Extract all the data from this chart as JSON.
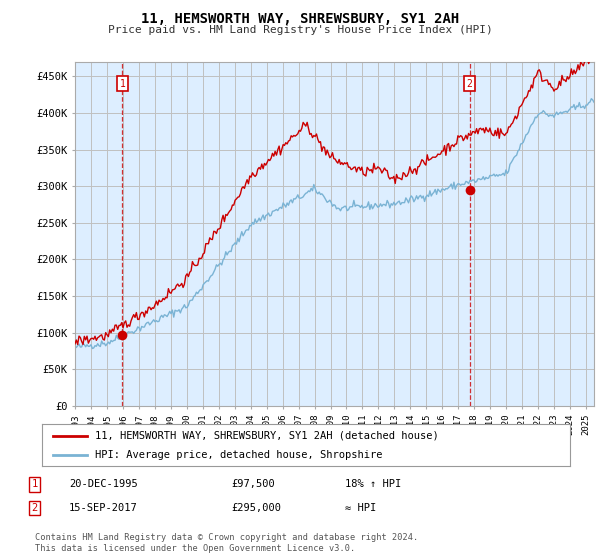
{
  "title": "11, HEMSWORTH WAY, SHREWSBURY, SY1 2AH",
  "subtitle": "Price paid vs. HM Land Registry's House Price Index (HPI)",
  "ylabel_ticks": [
    "£0",
    "£50K",
    "£100K",
    "£150K",
    "£200K",
    "£250K",
    "£300K",
    "£350K",
    "£400K",
    "£450K"
  ],
  "ytick_values": [
    0,
    50000,
    100000,
    150000,
    200000,
    250000,
    300000,
    350000,
    400000,
    450000
  ],
  "ylim": [
    0,
    470000
  ],
  "xlim_start": 1993.0,
  "xlim_end": 2025.5,
  "xtick_years": [
    1993,
    1994,
    1995,
    1996,
    1997,
    1998,
    1999,
    2000,
    2001,
    2002,
    2003,
    2004,
    2005,
    2006,
    2007,
    2008,
    2009,
    2010,
    2011,
    2012,
    2013,
    2014,
    2015,
    2016,
    2017,
    2018,
    2019,
    2020,
    2021,
    2022,
    2023,
    2024,
    2025
  ],
  "sale1": {
    "year": 1995.97,
    "price": 97500,
    "label": "1"
  },
  "sale2": {
    "year": 2017.71,
    "price": 295000,
    "label": "2"
  },
  "hpi_color": "#7ab3d4",
  "price_color": "#cc0000",
  "annotation_box_color": "#cc0000",
  "grid_color": "#c0c0c0",
  "chart_bg_color": "#ddeeff",
  "background_color": "#ffffff",
  "legend_label_red": "11, HEMSWORTH WAY, SHREWSBURY, SY1 2AH (detached house)",
  "legend_label_blue": "HPI: Average price, detached house, Shropshire",
  "table_row1": [
    "1",
    "20-DEC-1995",
    "£97,500",
    "18% ↑ HPI"
  ],
  "table_row2": [
    "2",
    "15-SEP-2017",
    "£295,000",
    "≈ HPI"
  ],
  "footer": "Contains HM Land Registry data © Crown copyright and database right 2024.\nThis data is licensed under the Open Government Licence v3.0."
}
